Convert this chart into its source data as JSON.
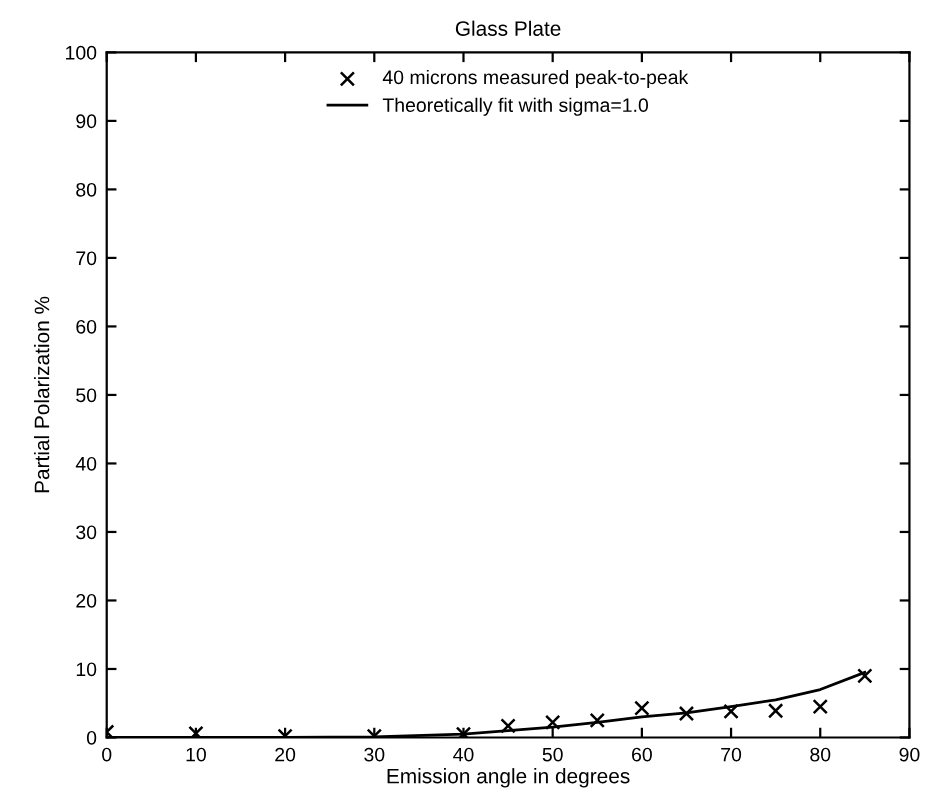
{
  "chart_data": {
    "type": "scatter",
    "title": "Glass Plate",
    "xlabel": "Emission angle in degrees",
    "ylabel": "Partial Polarization %",
    "xlim": [
      0,
      90
    ],
    "xticks": [
      0,
      10,
      20,
      30,
      40,
      50,
      60,
      70,
      80,
      90
    ],
    "ylim": [
      0,
      100
    ],
    "yticks": [
      0,
      10,
      20,
      30,
      40,
      50,
      60,
      70,
      80,
      90,
      100
    ],
    "legend": "top",
    "grid": false,
    "series": [
      {
        "name": "40 microns measured peak-to-peak",
        "marker": "cross",
        "color": "#000000",
        "x": [
          0,
          10,
          20,
          30,
          40,
          45,
          50,
          55,
          60,
          65,
          70,
          75,
          80,
          85
        ],
        "values": [
          0.8,
          0.6,
          0.2,
          0.2,
          0.5,
          1.7,
          2.2,
          2.5,
          4.3,
          3.5,
          3.8,
          3.9,
          4.5,
          9.0
        ]
      },
      {
        "name": "Theoretically fit with sigma=1.0",
        "type": "line",
        "marker": "none",
        "line_style": "solid",
        "color": "#000000",
        "x": [
          0,
          10,
          20,
          30,
          40,
          45,
          50,
          55,
          60,
          65,
          70,
          75,
          80,
          85
        ],
        "values": [
          0,
          0,
          0,
          0.1,
          0.5,
          1.0,
          1.5,
          2.2,
          3.0,
          3.6,
          4.5,
          5.5,
          7.0,
          9.5
        ]
      }
    ]
  }
}
